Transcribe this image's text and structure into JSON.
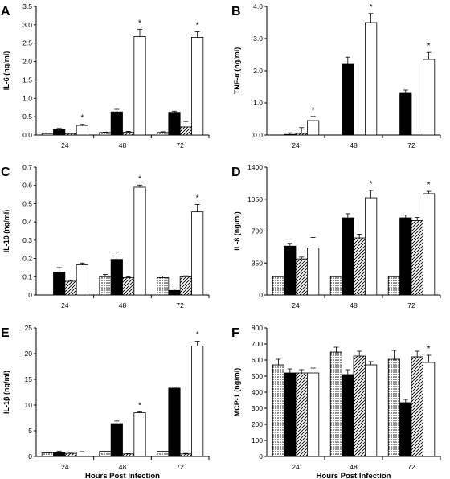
{
  "chart_data": [
    {
      "type": "bar",
      "letter": "A",
      "ylabel": "IL-6 (ng/ml)",
      "xlabel": "",
      "categories": [
        "24",
        "48",
        "72"
      ],
      "ylim": [
        0,
        3.5
      ],
      "yticks": [
        "0.0",
        "0.5",
        "1.0",
        "1.5",
        "2.0",
        "2.5",
        "3.0",
        "3.5"
      ],
      "grid": false,
      "series": [
        {
          "pattern": "dots",
          "values": [
            0.04,
            0.07,
            0.07
          ],
          "errors": [
            0.01,
            0.01,
            0.02
          ]
        },
        {
          "pattern": "solid",
          "values": [
            0.15,
            0.63,
            0.62
          ],
          "errors": [
            0.03,
            0.07,
            0.03
          ]
        },
        {
          "pattern": "hatch",
          "values": [
            0.04,
            0.08,
            0.22
          ],
          "errors": [
            0.01,
            0.02,
            0.15
          ]
        },
        {
          "pattern": "open",
          "values": [
            0.26,
            2.68,
            2.66
          ],
          "errors": [
            0.03,
            0.2,
            0.15
          ]
        }
      ],
      "significance": [
        "*",
        "*",
        "*"
      ]
    },
    {
      "type": "bar",
      "letter": "B",
      "ylabel": "TNF-α (ng/ml)",
      "xlabel": "",
      "categories": [
        "24",
        "48",
        "72"
      ],
      "ylim": [
        0,
        4.0
      ],
      "yticks": [
        "0.0",
        "1.0",
        "2.0",
        "3.0",
        "4.0"
      ],
      "grid": false,
      "series": [
        {
          "pattern": "dots",
          "values": [
            0.0,
            0.0,
            0.0
          ],
          "errors": [
            0,
            0,
            0
          ]
        },
        {
          "pattern": "solid",
          "values": [
            0.02,
            2.2,
            1.3
          ],
          "errors": [
            0.05,
            0.22,
            0.1
          ]
        },
        {
          "pattern": "hatch",
          "values": [
            0.05,
            0.0,
            0.0
          ],
          "errors": [
            0.18,
            0,
            0
          ]
        },
        {
          "pattern": "open",
          "values": [
            0.45,
            3.5,
            2.35
          ],
          "errors": [
            0.13,
            0.28,
            0.22
          ]
        }
      ],
      "significance": [
        "*",
        "*",
        "*"
      ]
    },
    {
      "type": "bar",
      "letter": "C",
      "ylabel": "IL-10 (ng/ml)",
      "xlabel": "",
      "categories": [
        "24",
        "48",
        "72"
      ],
      "ylim": [
        0,
        0.7
      ],
      "yticks": [
        "0",
        "0.1",
        "0.2",
        "0.3",
        "0.4",
        "0.5",
        "0.6",
        "0.7"
      ],
      "grid": false,
      "series": [
        {
          "pattern": "dots",
          "values": [
            0.0,
            0.1,
            0.095
          ],
          "errors": [
            0,
            0.012,
            0.008
          ]
        },
        {
          "pattern": "solid",
          "values": [
            0.125,
            0.195,
            0.025
          ],
          "errors": [
            0.025,
            0.04,
            0.008
          ]
        },
        {
          "pattern": "hatch",
          "values": [
            0.075,
            0.095,
            0.1
          ],
          "errors": [
            0.005,
            0.005,
            0.005
          ]
        },
        {
          "pattern": "open",
          "values": [
            0.165,
            0.59,
            0.455
          ],
          "errors": [
            0.01,
            0.012,
            0.04
          ]
        }
      ],
      "significance": [
        "",
        "*",
        "*"
      ]
    },
    {
      "type": "bar",
      "letter": "D",
      "ylabel": "IL-8 (ng/ml)",
      "xlabel": "",
      "categories": [
        "24",
        "48",
        "72"
      ],
      "ylim": [
        0,
        1400
      ],
      "yticks": [
        "0",
        "350",
        "700",
        "1050",
        "1400"
      ],
      "grid": false,
      "series": [
        {
          "pattern": "dots",
          "values": [
            200,
            200,
            200
          ],
          "errors": [
            8,
            0,
            0
          ]
        },
        {
          "pattern": "solid",
          "values": [
            535,
            845,
            845
          ],
          "errors": [
            30,
            45,
            30
          ]
        },
        {
          "pattern": "hatch",
          "values": [
            395,
            625,
            815
          ],
          "errors": [
            20,
            40,
            35
          ]
        },
        {
          "pattern": "open",
          "values": [
            515,
            1065,
            1110
          ],
          "errors": [
            115,
            80,
            25
          ]
        }
      ],
      "significance": [
        "",
        "*",
        "*"
      ]
    },
    {
      "type": "bar",
      "letter": "E",
      "ylabel": "IL-1β (ng/ml)",
      "xlabel": "Hours Post Infection",
      "categories": [
        "24",
        "48",
        "72"
      ],
      "ylim": [
        0,
        25
      ],
      "yticks": [
        "0",
        "5",
        "10",
        "15",
        "20",
        "25"
      ],
      "grid": false,
      "series": [
        {
          "pattern": "dots",
          "values": [
            0.7,
            1.0,
            1.0
          ],
          "errors": [
            0.1,
            0,
            0
          ]
        },
        {
          "pattern": "solid",
          "values": [
            0.85,
            6.4,
            13.3
          ],
          "errors": [
            0.2,
            0.5,
            0.2
          ]
        },
        {
          "pattern": "hatch",
          "values": [
            0.6,
            0.5,
            0.5
          ],
          "errors": [
            0.05,
            0.05,
            0.1
          ]
        },
        {
          "pattern": "open",
          "values": [
            0.85,
            8.5,
            21.5
          ],
          "errors": [
            0.1,
            0.2,
            0.9
          ]
        }
      ],
      "significance": [
        "",
        "*",
        "*"
      ]
    },
    {
      "type": "bar",
      "letter": "F",
      "ylabel": "MCP-1 (ng/ml)",
      "xlabel": "Hours Post Infection",
      "categories": [
        "24",
        "48",
        "72"
      ],
      "ylim": [
        0,
        800
      ],
      "yticks": [
        "0",
        "100",
        "200",
        "300",
        "400",
        "500",
        "600",
        "700",
        "800"
      ],
      "grid": false,
      "series": [
        {
          "pattern": "dots",
          "values": [
            570,
            650,
            605
          ],
          "errors": [
            35,
            30,
            55
          ]
        },
        {
          "pattern": "solid",
          "values": [
            520,
            510,
            335
          ],
          "errors": [
            25,
            30,
            20
          ]
        },
        {
          "pattern": "hatch",
          "values": [
            520,
            625,
            620
          ],
          "errors": [
            20,
            30,
            35
          ]
        },
        {
          "pattern": "open",
          "values": [
            520,
            570,
            585
          ],
          "errors": [
            30,
            20,
            45
          ]
        }
      ],
      "significance": [
        "",
        "",
        "*"
      ]
    }
  ]
}
